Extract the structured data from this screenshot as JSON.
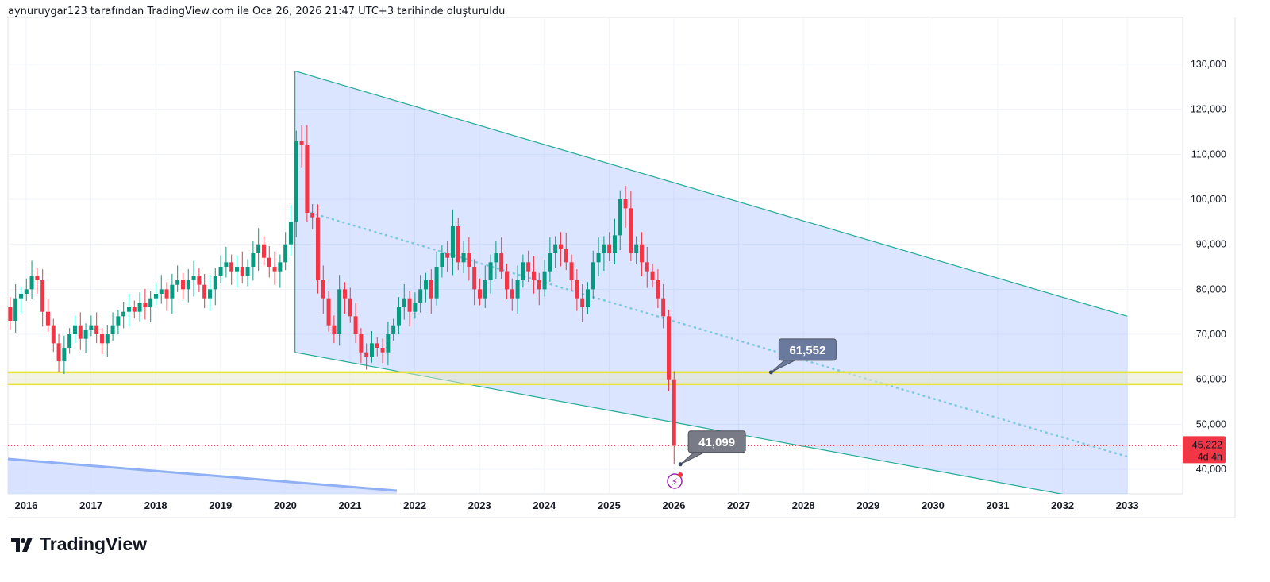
{
  "header": {
    "text": "aynuruygar123 tarafından TradingView.com ile Oca 26, 2026 21:47 UTC+3 tarihinde oluşturuldu"
  },
  "logo": {
    "text": "TradingView"
  },
  "colors": {
    "up": "#089981",
    "down": "#f23645",
    "channel": "#2962ff",
    "channel_line": "#22ab94",
    "yellow": "#e8e23a",
    "midline": "#7ec8e3",
    "label_bg": "#6a7a9f",
    "label_bg2": "#787b86"
  },
  "chart_data": {
    "type": "candlestick",
    "interval": "monthly",
    "start": 2015.67,
    "closes": [
      76000,
      73000,
      78000,
      79000,
      80000,
      83000,
      82000,
      75000,
      72000,
      68000,
      64000,
      67000,
      70000,
      72000,
      69000,
      71000,
      72000,
      70000,
      68000,
      70000,
      72000,
      74000,
      75000,
      76000,
      75000,
      77000,
      76000,
      78000,
      79000,
      80000,
      78000,
      81000,
      82000,
      80000,
      82000,
      83000,
      81000,
      78000,
      80000,
      83000,
      85000,
      86000,
      84000,
      85000,
      83000,
      85000,
      88000,
      90000,
      87000,
      85000,
      84000,
      86000,
      90000,
      95000,
      113000,
      112000,
      97000,
      96000,
      82000,
      78000,
      72000,
      70000,
      80000,
      78000,
      74000,
      70000,
      66000,
      65000,
      68000,
      67000,
      66000,
      70000,
      72000,
      76000,
      78000,
      75000,
      77000,
      80000,
      82000,
      78000,
      85000,
      88000,
      87000,
      94000,
      86000,
      88000,
      85000,
      80000,
      78000,
      82000,
      86000,
      88000,
      84000,
      80000,
      78000,
      82000,
      86000,
      84000,
      82000,
      80000,
      84000,
      88000,
      90000,
      89000,
      86000,
      82000,
      78000,
      76000,
      80000,
      86000,
      88000,
      90000,
      88000,
      92000,
      100000,
      98000,
      88000,
      90000,
      86000,
      84000,
      82000,
      78000,
      74000,
      60000,
      45222
    ],
    "last_low": 41099,
    "x_ticks": [
      "2016",
      "2017",
      "2018",
      "2019",
      "2020",
      "2021",
      "2022",
      "2023",
      "2024",
      "2025",
      "2026",
      "2027",
      "2028",
      "2029",
      "2030",
      "2031",
      "2032",
      "2033"
    ],
    "y_ticks": [
      "40,000",
      "50,000",
      "60,000",
      "70,000",
      "80,000",
      "90,000",
      "100,000",
      "110,000",
      "120,000",
      "130,000"
    ],
    "ylim": [
      34000,
      138000
    ],
    "xlim": [
      2015.72,
      2033.9
    ],
    "channel": {
      "upper": [
        [
          2020.15,
          128500
        ],
        [
          2033.0,
          74000
        ]
      ],
      "lower": [
        [
          2020.15,
          66000
        ],
        [
          2033.0,
          31800
        ]
      ],
      "mid": [
        [
          2020.4,
          97000
        ],
        [
          2033.0,
          42800
        ]
      ]
    },
    "horizontal_levels": [
      61552,
      58900
    ],
    "labels": [
      {
        "text": "61,552",
        "x": 2027.5,
        "y": 61552
      },
      {
        "text": "41,099",
        "x": 2026.1,
        "y": 41099
      }
    ],
    "last_price": {
      "value": "45,222",
      "countdown": "4d 4h",
      "y": 45222
    }
  }
}
